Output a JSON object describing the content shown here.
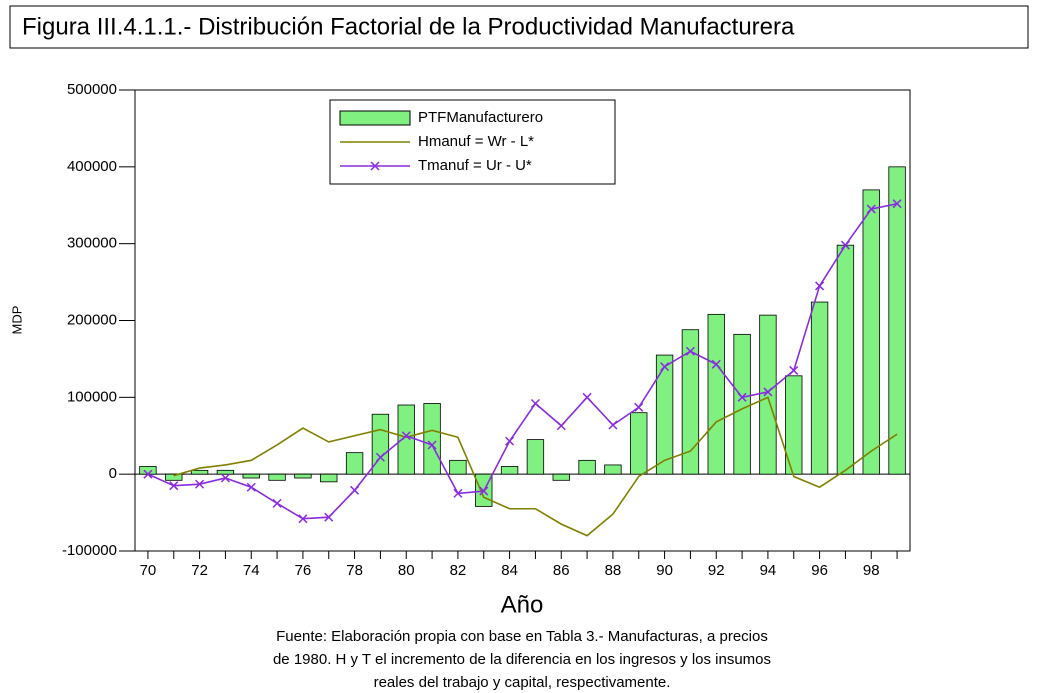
{
  "chart_data": {
    "type": "bar_line",
    "title": "Figura III.4.1.1.- Distribución Factorial de la Productividad Manufacturera",
    "x_label": "Año",
    "y_label": "MDP",
    "annotations": [
      "Fuente: Elaboración propia con base en Tabla 3.- Manufacturas, a precios",
      "de 1980. H y T el incremento de la diferencia en los ingresos y los insumos",
      "reales del trabajo y capital, respectivamente."
    ],
    "categories": [
      "70",
      null,
      "72",
      null,
      "74",
      null,
      "76",
      null,
      "78",
      null,
      "80",
      null,
      "82",
      null,
      "84",
      null,
      "86",
      null,
      "88",
      null,
      "90",
      null,
      "92",
      null,
      "94",
      null,
      "96",
      null,
      "98",
      null
    ],
    "series": [
      {
        "name": "PTFManufacturero",
        "kind": "bar",
        "color": "#80f080",
        "values": [
          10000,
          -8000,
          5000,
          5000,
          -5000,
          -8000,
          -5000,
          -10000,
          28000,
          78000,
          90000,
          92000,
          18000,
          -42000,
          10000,
          45000,
          -8000,
          18000,
          12000,
          80000,
          155000,
          188000,
          208000,
          182000,
          207000,
          128000,
          224000,
          298000,
          370000,
          400000
        ]
      },
      {
        "name": "Hmanuf = Wr - L*",
        "kind": "line",
        "color": "#808000",
        "values": [
          null,
          -2000,
          8000,
          12000,
          18000,
          38000,
          60000,
          42000,
          50000,
          58000,
          48000,
          57000,
          48000,
          -30000,
          -45000,
          -45000,
          -65000,
          -80000,
          -52000,
          -3000,
          18000,
          30000,
          68000,
          85000,
          100000,
          -3000,
          -17000,
          5000,
          30000,
          52000
        ]
      },
      {
        "name": "Tmanuf = Ur - U*",
        "kind": "line",
        "marker": "x",
        "color": "#8a2be2",
        "values": [
          0,
          -15000,
          -13000,
          -5000,
          -17000,
          -38000,
          -58000,
          -56000,
          -21000,
          22000,
          50000,
          38000,
          -25000,
          -22000,
          43000,
          92000,
          63000,
          100000,
          64000,
          87000,
          140000,
          160000,
          143000,
          100000,
          107000,
          135000,
          245000,
          298000,
          345000,
          352000
        ]
      }
    ],
    "ylim": [
      -100000,
      500000
    ],
    "yticks": [
      -100000,
      0,
      100000,
      200000,
      300000,
      400000,
      500000
    ]
  }
}
